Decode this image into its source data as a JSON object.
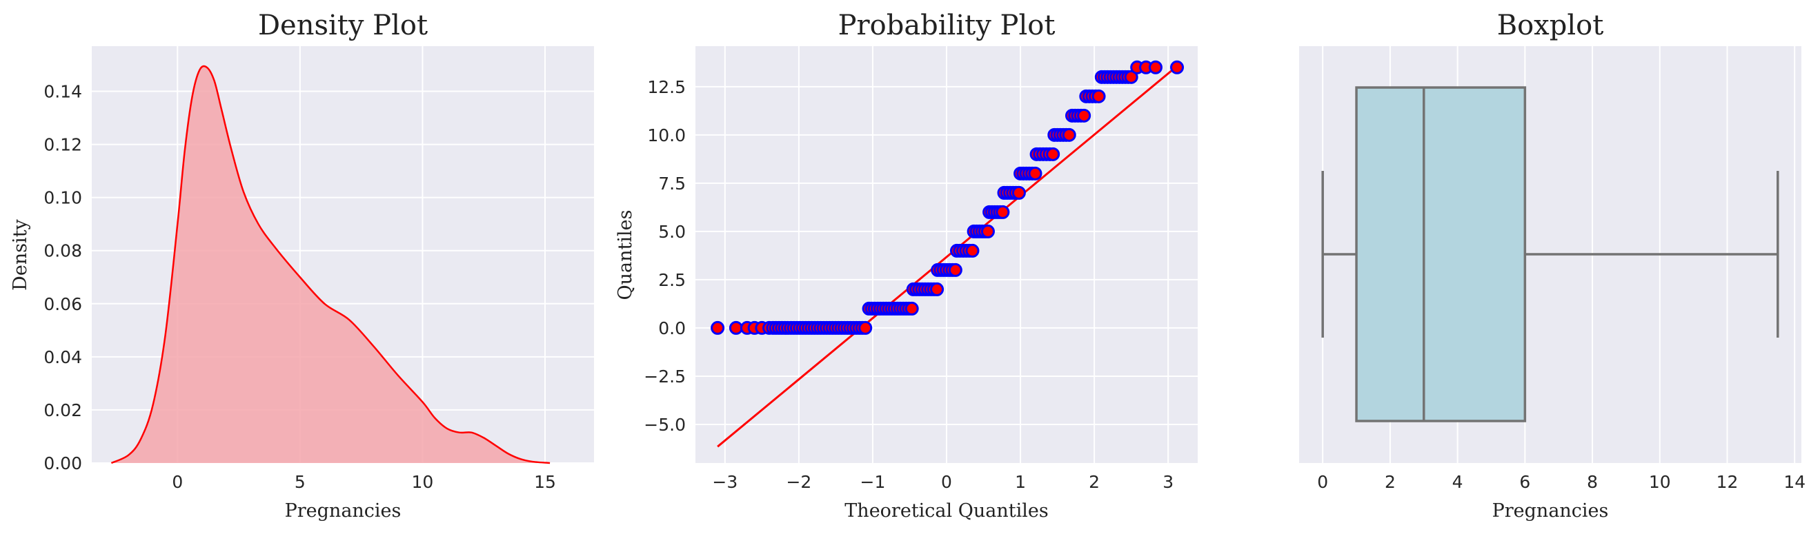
{
  "colors": {
    "kde_line": "#ff0000",
    "kde_fill": "#f4a6ac",
    "qq_marker_face": "#ff0000",
    "qq_marker_edge": "#0000ff",
    "qq_line": "#ff0000",
    "box_fill": "#b3d5df",
    "box_line": "#737373",
    "plot_background": "#eaeaf2"
  },
  "chart_data": [
    {
      "type": "area",
      "title": "Density Plot",
      "xlabel": "Pregnancies",
      "ylabel": "Density",
      "xlim": [
        -3.5,
        17
      ],
      "ylim": [
        0,
        0.157
      ],
      "xticks": [
        0,
        5,
        10,
        15
      ],
      "xtick_labels": [
        "0",
        "5",
        "10",
        "15"
      ],
      "yticks": [
        0,
        0.02,
        0.04,
        0.06,
        0.08,
        0.1,
        0.12,
        0.14
      ],
      "ytick_labels": [
        "0.00",
        "0.02",
        "0.04",
        "0.06",
        "0.08",
        "0.10",
        "0.12",
        "0.14"
      ],
      "grid": true,
      "x": [
        -2.7,
        -2.0,
        -1.5,
        -1.0,
        -0.5,
        0.0,
        0.3,
        0.6,
        0.9,
        1.2,
        1.5,
        1.8,
        2.2,
        2.7,
        3.3,
        4.0,
        5.0,
        6.0,
        7.0,
        8.0,
        9.0,
        10.0,
        10.5,
        11.0,
        11.5,
        12.0,
        12.5,
        13.0,
        13.5,
        14.0,
        14.5,
        15.2
      ],
      "y": [
        0.0,
        0.003,
        0.009,
        0.022,
        0.048,
        0.09,
        0.118,
        0.138,
        0.148,
        0.149,
        0.144,
        0.133,
        0.118,
        0.102,
        0.09,
        0.081,
        0.07,
        0.06,
        0.054,
        0.044,
        0.033,
        0.023,
        0.017,
        0.013,
        0.0115,
        0.0115,
        0.0095,
        0.0065,
        0.0035,
        0.0015,
        0.0005,
        0.0
      ]
    },
    {
      "type": "scatter",
      "title": "Probability Plot",
      "xlabel": "Theoretical Quantiles",
      "ylabel": "Quantiles",
      "xlim": [
        -3.4,
        3.4
      ],
      "ylim": [
        -7.0,
        14.6
      ],
      "xticks": [
        -3,
        -2,
        -1,
        0,
        1,
        2,
        3
      ],
      "xtick_labels": [
        "−3",
        "−2",
        "−1",
        "0",
        "1",
        "2",
        "3"
      ],
      "yticks": [
        -5.0,
        -2.5,
        0.0,
        2.5,
        5.0,
        7.5,
        10.0,
        12.5
      ],
      "ytick_labels": [
        "−5.0",
        "−2.5",
        "0.0",
        "2.5",
        "5.0",
        "7.5",
        "10.0",
        "12.5"
      ],
      "grid": true,
      "levels": [
        {
          "y": 0,
          "x_from": -3.1,
          "x_to": -1.1,
          "isolated": [
            -2.85,
            -2.7,
            -2.6,
            -2.5,
            -2.4
          ]
        },
        {
          "y": 1,
          "x_from": -1.05,
          "x_to": -0.47
        },
        {
          "y": 2,
          "x_from": -0.45,
          "x_to": -0.13
        },
        {
          "y": 3,
          "x_from": -0.12,
          "x_to": 0.12
        },
        {
          "y": 4,
          "x_from": 0.14,
          "x_to": 0.35
        },
        {
          "y": 5,
          "x_from": 0.37,
          "x_to": 0.56
        },
        {
          "y": 6,
          "x_from": 0.58,
          "x_to": 0.76
        },
        {
          "y": 7,
          "x_from": 0.78,
          "x_to": 0.98
        },
        {
          "y": 8,
          "x_from": 1.0,
          "x_to": 1.2
        },
        {
          "y": 9,
          "x_from": 1.22,
          "x_to": 1.44
        },
        {
          "y": 10,
          "x_from": 1.46,
          "x_to": 1.66
        },
        {
          "y": 11,
          "x_from": 1.7,
          "x_to": 1.86
        },
        {
          "y": 12,
          "x_from": 1.89,
          "x_to": 2.06
        },
        {
          "y": 13,
          "x_from": 2.1,
          "x_to": 2.5
        },
        {
          "y": 13.5,
          "x_from": 2.58,
          "x_to": 3.12,
          "isolated": [
            2.58,
            2.7,
            2.83,
            3.12
          ]
        }
      ],
      "fit_line": {
        "x": [
          -3.1,
          3.1
        ],
        "y": [
          -6.15,
          13.5
        ]
      }
    },
    {
      "type": "box",
      "title": "Boxplot",
      "xlabel": "Pregnancies",
      "xlim": [
        -0.7,
        14.2
      ],
      "xticks": [
        0,
        2,
        4,
        6,
        8,
        10,
        12,
        14
      ],
      "xtick_labels": [
        "0",
        "2",
        "4",
        "6",
        "8",
        "10",
        "12",
        "14"
      ],
      "grid": true,
      "whisker_low": 0,
      "q1": 1,
      "median": 3,
      "q3": 6,
      "whisker_high": 13.5
    }
  ]
}
